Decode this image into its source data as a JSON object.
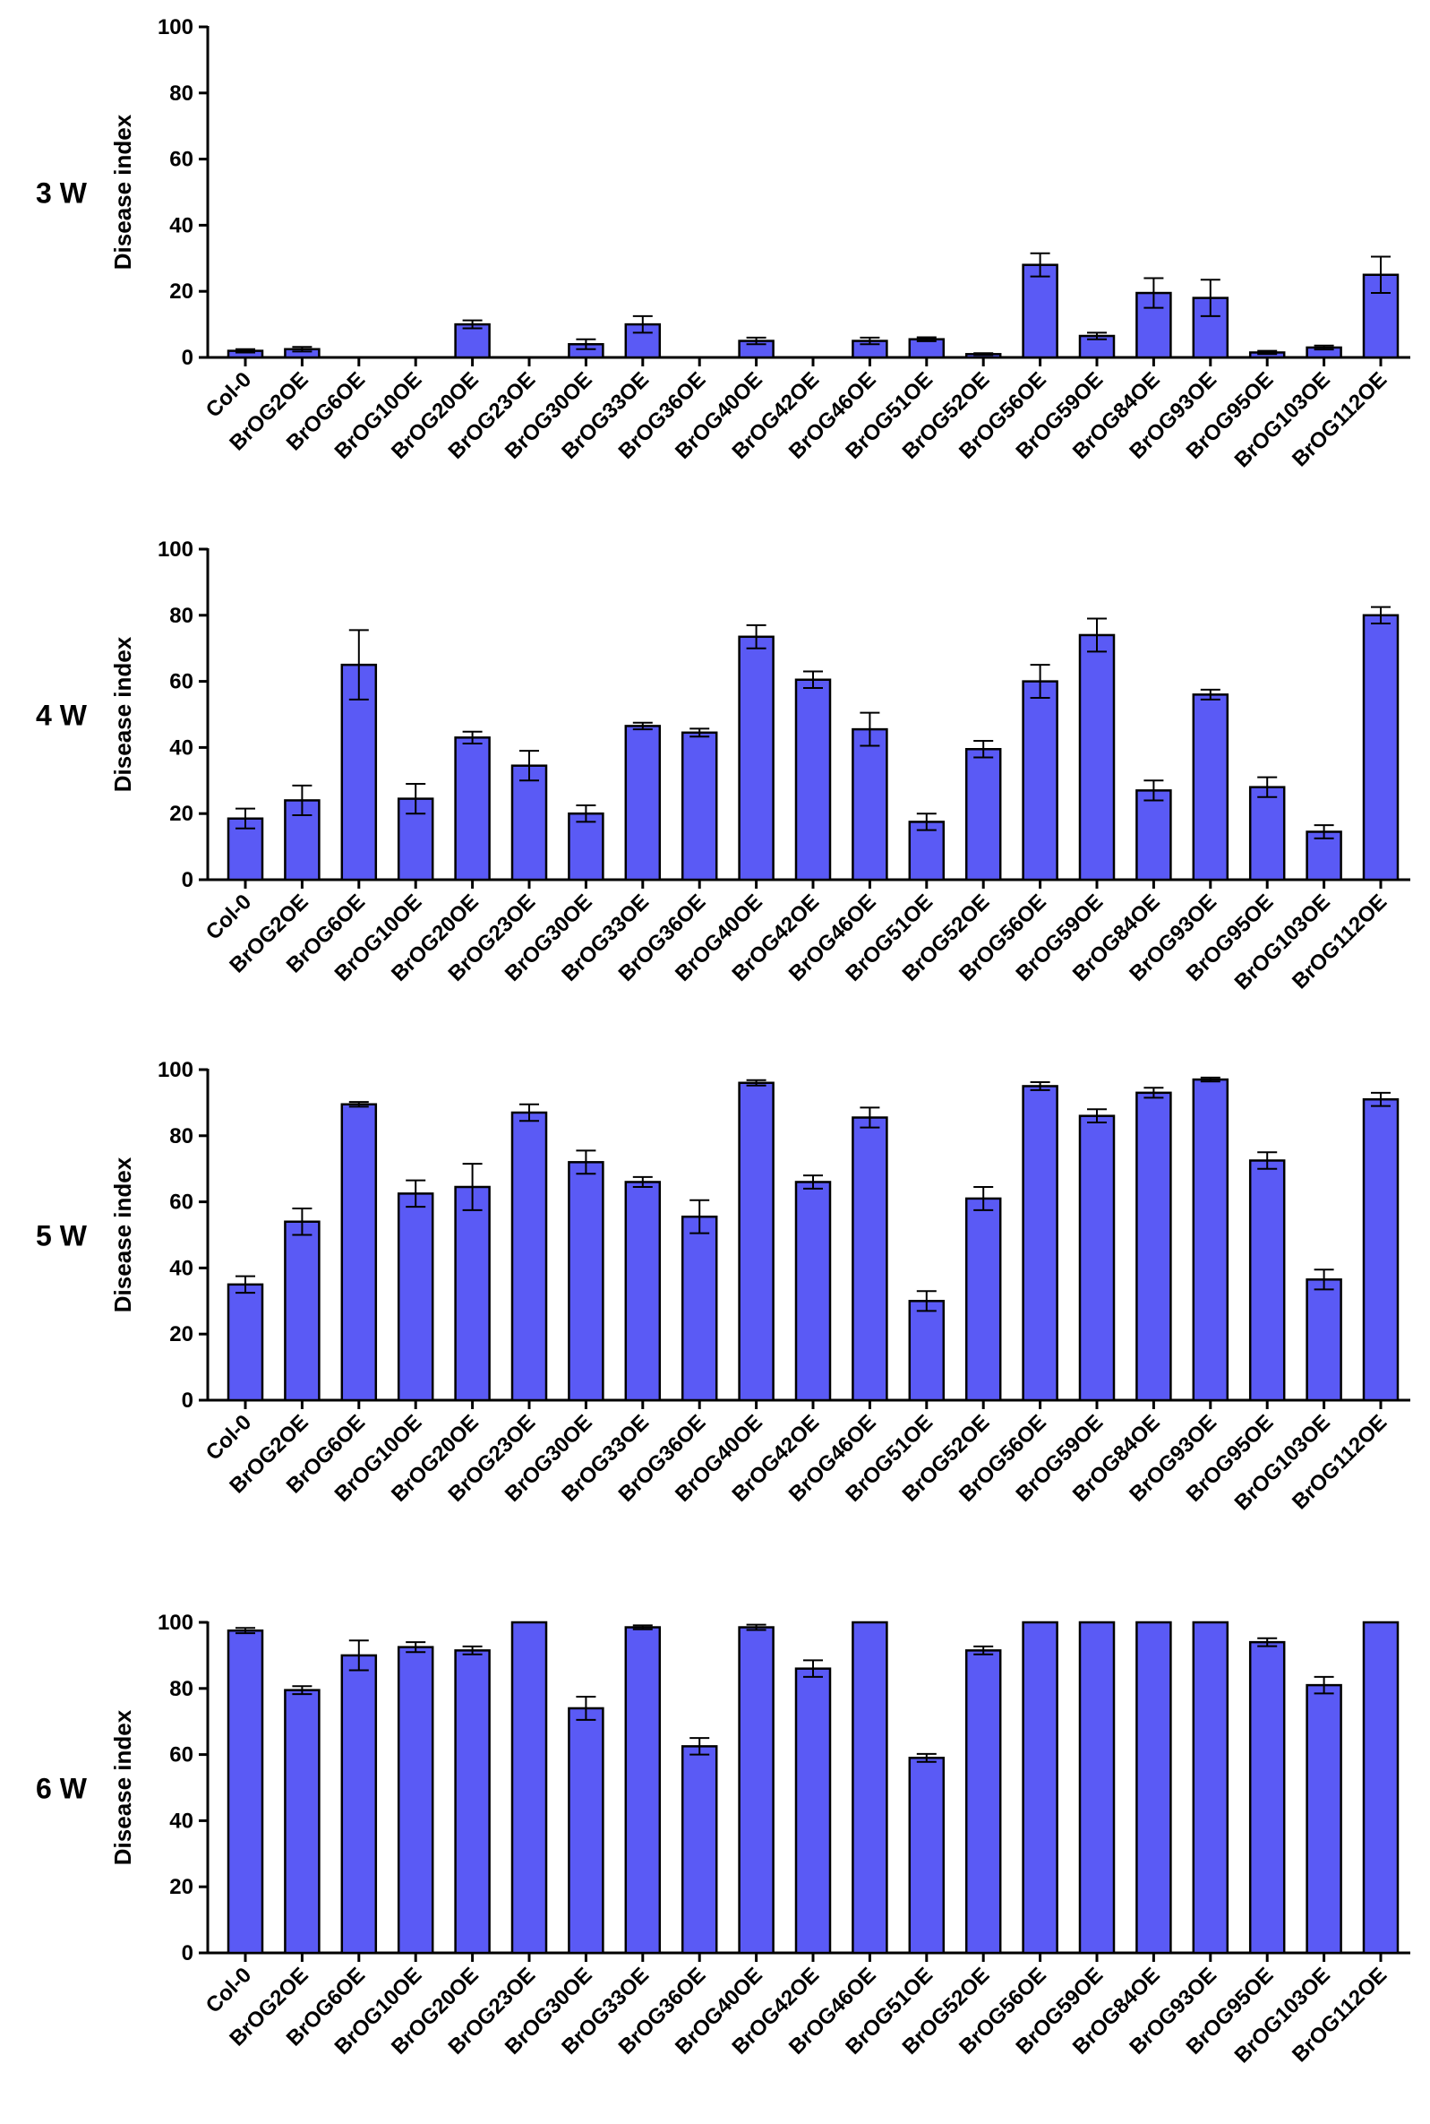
{
  "figure": {
    "y_axis_label": "Disease index",
    "bar_color": "#5a5af5",
    "bar_stroke": "#000000"
  },
  "chart_data": [
    {
      "type": "bar",
      "title": "3 W",
      "ylabel": "Disease index",
      "ylim": [
        0,
        100
      ],
      "yticks": [
        0,
        20,
        40,
        60,
        80,
        100
      ],
      "categories": [
        "Col-0",
        "BrOG2OE",
        "BrOG6OE",
        "BrOG10OE",
        "BrOG20OE",
        "BrOG23OE",
        "BrOG30OE",
        "BrOG33OE",
        "BrOG36OE",
        "BrOG40OE",
        "BrOG42OE",
        "BrOG46OE",
        "BrOG51OE",
        "BrOG52OE",
        "BrOG56OE",
        "BrOG59OE",
        "BrOG84OE",
        "BrOG93OE",
        "BrOG95OE",
        "BrOG103OE",
        "BrOG112OE"
      ],
      "values": [
        2,
        2.5,
        0,
        0,
        10,
        0,
        4,
        10,
        0,
        5,
        0,
        5,
        5.5,
        1,
        28,
        6.5,
        19.5,
        18,
        1.5,
        3,
        25
      ],
      "errors": [
        0.5,
        0.7,
        0,
        0,
        1.2,
        0,
        1.5,
        2.5,
        0,
        1,
        0,
        1,
        0.6,
        0.3,
        3.5,
        1,
        4.5,
        5.5,
        0.5,
        0.6,
        5.5
      ]
    },
    {
      "type": "bar",
      "title": "4 W",
      "ylabel": "Disease index",
      "ylim": [
        0,
        100
      ],
      "yticks": [
        0,
        20,
        40,
        60,
        80,
        100
      ],
      "categories": [
        "Col-0",
        "BrOG2OE",
        "BrOG6OE",
        "BrOG10OE",
        "BrOG20OE",
        "BrOG23OE",
        "BrOG30OE",
        "BrOG33OE",
        "BrOG36OE",
        "BrOG40OE",
        "BrOG42OE",
        "BrOG46OE",
        "BrOG51OE",
        "BrOG52OE",
        "BrOG56OE",
        "BrOG59OE",
        "BrOG84OE",
        "BrOG93OE",
        "BrOG95OE",
        "BrOG103OE",
        "BrOG112OE"
      ],
      "values": [
        18.5,
        24,
        65,
        24.5,
        43,
        34.5,
        20,
        46.5,
        44.5,
        73.5,
        60.5,
        45.5,
        17.5,
        39.5,
        60,
        74,
        27,
        56,
        28,
        14.5,
        80
      ],
      "errors": [
        3,
        4.5,
        10.5,
        4.5,
        1.8,
        4.5,
        2.5,
        1,
        1.2,
        3.5,
        2.5,
        5,
        2.5,
        2.5,
        5,
        5,
        3,
        1.5,
        3,
        2,
        2.5
      ]
    },
    {
      "type": "bar",
      "title": "5 W",
      "ylabel": "Disease index",
      "ylim": [
        0,
        100
      ],
      "yticks": [
        0,
        20,
        40,
        60,
        80,
        100
      ],
      "categories": [
        "Col-0",
        "BrOG2OE",
        "BrOG6OE",
        "BrOG10OE",
        "BrOG20OE",
        "BrOG23OE",
        "BrOG30OE",
        "BrOG33OE",
        "BrOG36OE",
        "BrOG40OE",
        "BrOG42OE",
        "BrOG46OE",
        "BrOG51OE",
        "BrOG52OE",
        "BrOG56OE",
        "BrOG59OE",
        "BrOG84OE",
        "BrOG93OE",
        "BrOG95OE",
        "BrOG103OE",
        "BrOG112OE"
      ],
      "values": [
        35,
        54,
        89.5,
        62.5,
        64.5,
        87,
        72,
        66,
        55.5,
        96,
        66,
        85.5,
        30,
        61,
        95,
        86,
        93,
        97,
        72.5,
        36.5,
        91
      ],
      "errors": [
        2.5,
        4,
        0.7,
        4,
        7,
        2.5,
        3.5,
        1.5,
        5,
        0.8,
        2,
        3,
        3,
        3.5,
        1.2,
        2,
        1.5,
        0.6,
        2.5,
        3,
        2
      ]
    },
    {
      "type": "bar",
      "title": "6 W",
      "ylabel": "Disease index",
      "ylim": [
        0,
        100
      ],
      "yticks": [
        0,
        20,
        40,
        60,
        80,
        100
      ],
      "categories": [
        "Col-0",
        "BrOG2OE",
        "BrOG6OE",
        "BrOG10OE",
        "BrOG20OE",
        "BrOG23OE",
        "BrOG30OE",
        "BrOG33OE",
        "BrOG36OE",
        "BrOG40OE",
        "BrOG42OE",
        "BrOG46OE",
        "BrOG51OE",
        "BrOG52OE",
        "BrOG56OE",
        "BrOG59OE",
        "BrOG84OE",
        "BrOG93OE",
        "BrOG95OE",
        "BrOG103OE",
        "BrOG112OE"
      ],
      "values": [
        97.5,
        79.5,
        90,
        92.5,
        91.5,
        100,
        74,
        98.5,
        62.5,
        98.5,
        86,
        100,
        59,
        91.5,
        100,
        100,
        100,
        100,
        94,
        81,
        100
      ],
      "errors": [
        0.8,
        1.2,
        4.5,
        1.5,
        1.2,
        0,
        3.5,
        0.6,
        2.5,
        0.8,
        2.5,
        0,
        1.2,
        1.2,
        0,
        0,
        0,
        0,
        1.2,
        2.5,
        0
      ]
    }
  ]
}
